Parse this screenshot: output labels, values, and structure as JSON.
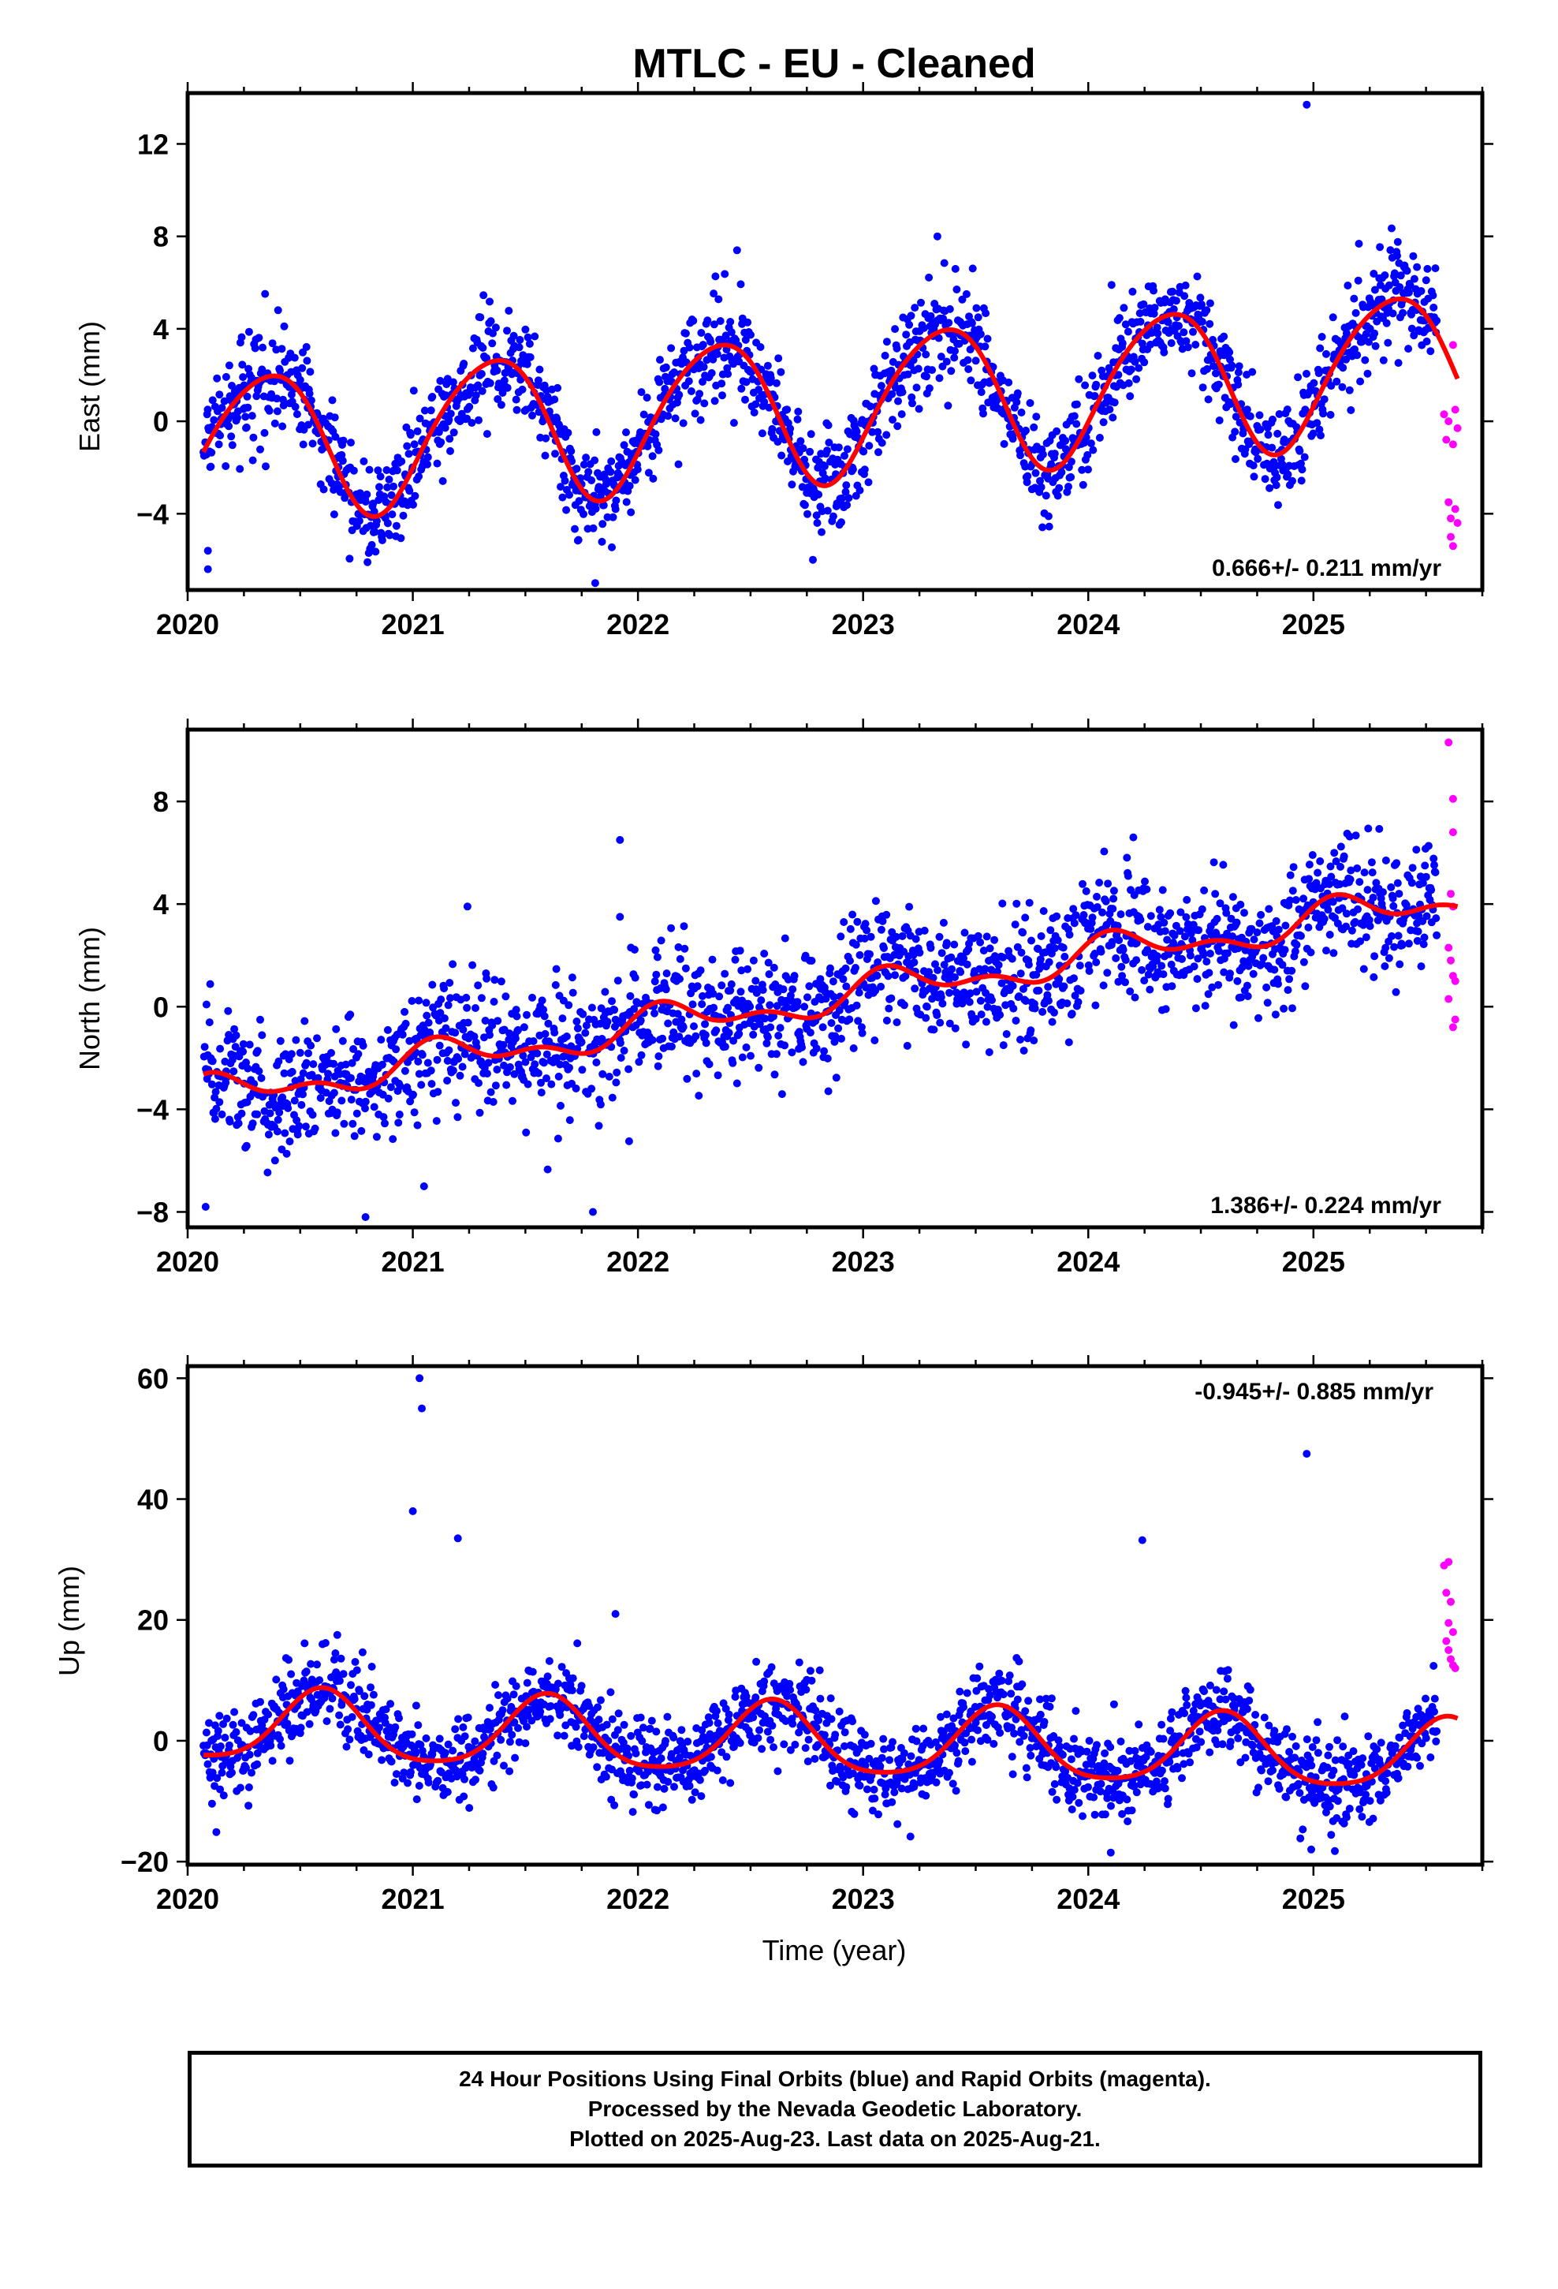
{
  "title": "MTLC  - EU - Cleaned",
  "colors": {
    "final": "#0000ff",
    "rapid": "#ff00ff",
    "model": "#ff0000"
  },
  "chart_data": [
    {
      "type": "scatter",
      "name": "east",
      "ylabel": "East (mm)",
      "xlim": [
        2020.0,
        2025.75
      ],
      "ylim": [
        -7.3,
        14.2
      ],
      "yticks": [
        -4,
        0,
        4,
        8,
        12
      ],
      "ytick_labels": [
        "−4",
        "0",
        "4",
        "8",
        "12"
      ],
      "xticks": [
        2020,
        2021,
        2022,
        2023,
        2024,
        2025
      ],
      "xtick_labels": [
        "2020",
        "2021",
        "2022",
        "2023",
        "2024",
        "2025"
      ],
      "rate_text": "0.666+/- 0.211 mm/yr",
      "rate_position": "bottom-right",
      "model": {
        "offset": -1.2,
        "rate": 0.666,
        "amp_sin": 2.6,
        "amp_cos": -1.8,
        "amp_sin2": 0.2,
        "amp_cos2": 0.3
      },
      "data_start": 2020.07,
      "final_end": 2025.55,
      "data_end": 2025.64,
      "scatter_sd": 1.1,
      "outliers": [
        [
          2024.97,
          13.7
        ],
        [
          2022.44,
          7.4
        ],
        [
          2023.33,
          8.0
        ],
        [
          2021.81,
          -7.0
        ],
        [
          2020.09,
          -6.4
        ],
        [
          2020.09,
          -5.6
        ]
      ],
      "rapid_points": [
        [
          2025.58,
          0.3
        ],
        [
          2025.59,
          -0.8
        ],
        [
          2025.6,
          0.0
        ],
        [
          2025.6,
          -3.5
        ],
        [
          2025.61,
          -4.2
        ],
        [
          2025.61,
          -5.0
        ],
        [
          2025.62,
          -5.4
        ],
        [
          2025.62,
          3.3
        ],
        [
          2025.62,
          -1.0
        ],
        [
          2025.63,
          0.5
        ],
        [
          2025.63,
          -3.8
        ],
        [
          2025.64,
          -0.3
        ],
        [
          2025.64,
          -4.4
        ]
      ]
    },
    {
      "type": "scatter",
      "name": "north",
      "ylabel": "North (mm)",
      "xlim": [
        2020.0,
        2025.75
      ],
      "ylim": [
        -8.6,
        10.8
      ],
      "yticks": [
        -8,
        -4,
        0,
        4,
        8
      ],
      "ytick_labels": [
        "−8",
        "−4",
        "0",
        "4",
        "8"
      ],
      "xticks": [
        2020,
        2021,
        2022,
        2023,
        2024,
        2025
      ],
      "xtick_labels": [
        "2020",
        "2021",
        "2022",
        "2023",
        "2024",
        "2025"
      ],
      "rate_text": "1.386+/- 0.224 mm/yr",
      "rate_position": "bottom-right",
      "model": {
        "offset": -3.6,
        "rate": 1.386,
        "amp_sin": 0.45,
        "amp_cos": 0.35,
        "amp_sin2": 0.3,
        "amp_cos2": 0.2
      },
      "data_start": 2020.07,
      "final_end": 2025.55,
      "data_end": 2025.64,
      "scatter_sd": 1.2,
      "outliers": [
        [
          2021.92,
          6.5
        ],
        [
          2021.92,
          3.5
        ],
        [
          2024.2,
          6.6
        ],
        [
          2020.79,
          -8.2
        ],
        [
          2021.8,
          -8.0
        ],
        [
          2020.08,
          -7.8
        ],
        [
          2021.05,
          -7.0
        ]
      ],
      "rapid_points": [
        [
          2025.6,
          10.3
        ],
        [
          2025.62,
          8.1
        ],
        [
          2025.62,
          6.8
        ],
        [
          2025.61,
          4.4
        ],
        [
          2025.62,
          3.9
        ],
        [
          2025.6,
          2.3
        ],
        [
          2025.61,
          1.8
        ],
        [
          2025.62,
          1.2
        ],
        [
          2025.63,
          1.0
        ],
        [
          2025.6,
          0.3
        ],
        [
          2025.63,
          -0.5
        ],
        [
          2025.62,
          -0.8
        ]
      ]
    },
    {
      "type": "scatter",
      "name": "up",
      "ylabel": "Up (mm)",
      "xlim": [
        2020.0,
        2025.75
      ],
      "ylim": [
        -20.5,
        62
      ],
      "yticks": [
        -20,
        0,
        20,
        40,
        60
      ],
      "ytick_labels": [
        "−20",
        "0",
        "20",
        "40",
        "60"
      ],
      "xticks": [
        2020,
        2021,
        2022,
        2023,
        2024,
        2025
      ],
      "xtick_labels": [
        "2020",
        "2021",
        "2022",
        "2023",
        "2024",
        "2025"
      ],
      "xlabel": "Time (year)",
      "rate_text": "-0.945+/- 0.885 mm/yr",
      "rate_position": "top-right",
      "model": {
        "offset": 2.5,
        "rate": -0.945,
        "amp_sin": -3.3,
        "amp_cos": -4.8,
        "amp_sin2": 1.0,
        "amp_cos2": 0.3
      },
      "data_start": 2020.07,
      "final_end": 2025.55,
      "data_end": 2025.64,
      "scatter_sd": 3.6,
      "outliers": [
        [
          2021.03,
          60.0
        ],
        [
          2021.04,
          55.0
        ],
        [
          2021.0,
          38.0
        ],
        [
          2021.2,
          33.5
        ],
        [
          2024.24,
          33.2
        ],
        [
          2024.97,
          47.5
        ],
        [
          2021.9,
          21.0
        ],
        [
          2024.1,
          -18.5
        ],
        [
          2024.99,
          -18.0
        ]
      ],
      "rapid_points": [
        [
          2025.58,
          29.0
        ],
        [
          2025.6,
          29.6
        ],
        [
          2025.59,
          24.5
        ],
        [
          2025.61,
          23.0
        ],
        [
          2025.6,
          19.5
        ],
        [
          2025.62,
          18.0
        ],
        [
          2025.59,
          16.5
        ],
        [
          2025.6,
          15.0
        ],
        [
          2025.61,
          13.5
        ],
        [
          2025.62,
          12.5
        ],
        [
          2025.63,
          12.0
        ]
      ]
    }
  ],
  "footer": {
    "line1": "24 Hour Positions Using Final Orbits (blue) and Rapid Orbits (magenta).",
    "line2": "Processed by the Nevada Geodetic Laboratory.",
    "line3": "Plotted on 2025-Aug-23. Last data on 2025-Aug-21."
  }
}
